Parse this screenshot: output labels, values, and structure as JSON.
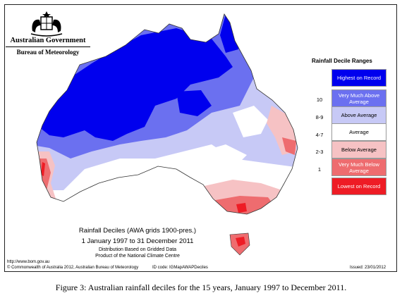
{
  "header": {
    "org": "Australian Government",
    "agency": "Bureau of Meteorology"
  },
  "legend": {
    "title": "Rainfall Decile Ranges",
    "items": [
      {
        "code": "",
        "label": "Highest on Record",
        "color": "#0000ee",
        "text_color": "#ffffff"
      },
      {
        "code": "10",
        "label": "Very Much Above Average",
        "color": "#6b70f0",
        "text_color": "#ffffff"
      },
      {
        "code": "8-9",
        "label": "Above Average",
        "color": "#c7c9f6",
        "text_color": "#000000"
      },
      {
        "code": "4-7",
        "label": "Average",
        "color": "#ffffff",
        "text_color": "#000000"
      },
      {
        "code": "2-3",
        "label": "Below Average",
        "color": "#f6c2c4",
        "text_color": "#000000"
      },
      {
        "code": "1",
        "label": "Very Much Below Average",
        "color": "#ee6c6f",
        "text_color": "#ffffff"
      },
      {
        "code": "",
        "label": "Lowest on Record",
        "color": "#ee1c25",
        "text_color": "#ffffff"
      }
    ]
  },
  "map": {
    "title": "Rainfall Deciles (AWA grids 1900-pres.)",
    "dates": "1 January 1997 to 31 December 2011",
    "distribution": "Distribution Based on Gridded Data",
    "product": "Product of the National Climate Centre"
  },
  "footer": {
    "url": "http://www.bom.gov.au",
    "copyright": "© Commonwealth of Australia 2012, Australian Bureau of Meteorology",
    "id_code": "ID code: IGMapAWAPDeciles",
    "issued": "Issued: 23/01/2012"
  },
  "caption": "Figure 3: Australian rainfall deciles for the 15 years, January 1997 to December 2011."
}
